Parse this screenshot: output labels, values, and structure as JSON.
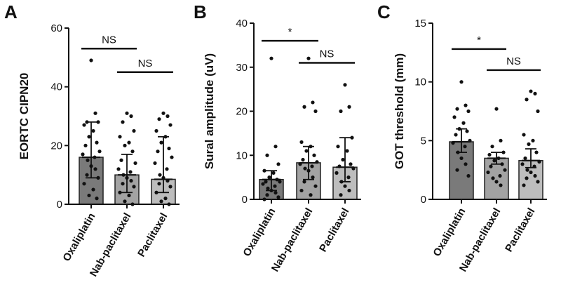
{
  "chart_data": [
    {
      "type": "bar",
      "panel": "A",
      "ylabel": "EORTC CIPN20",
      "ylim": [
        0,
        60
      ],
      "yticks": [
        0,
        20,
        40,
        60
      ],
      "categories": [
        "Oxaliplatin",
        "Nab-paclitaxel",
        "Paclitaxel"
      ],
      "bar_colors": [
        "#7a7a7a",
        "#a3a3a3",
        "#bdbdbd"
      ],
      "values": [
        16,
        10,
        8.5
      ],
      "error_low": [
        9,
        4,
        4
      ],
      "error_high": [
        28,
        17,
        23
      ],
      "points": [
        [
          49,
          31,
          28,
          28,
          27,
          25,
          23,
          21,
          20,
          18,
          17,
          16,
          15,
          13,
          12,
          10,
          9,
          7,
          5,
          3,
          2
        ],
        [
          31,
          30,
          28,
          25,
          23,
          21,
          20,
          18,
          15,
          14,
          12,
          11,
          10,
          9,
          8,
          7,
          6,
          4,
          3,
          1,
          0
        ],
        [
          31,
          30,
          29,
          27,
          25,
          23,
          21,
          19,
          18,
          16,
          14,
          12,
          10,
          9,
          8,
          7,
          6,
          4,
          2,
          1,
          0
        ]
      ],
      "significance": [
        {
          "from": 0,
          "to": 1,
          "label": "NS",
          "y": 53
        },
        {
          "from": 1,
          "to": 2,
          "label": "NS",
          "y": 45
        }
      ]
    },
    {
      "type": "bar",
      "panel": "B",
      "ylabel": "Sural amplitude  (uV)",
      "ylim": [
        0,
        40
      ],
      "yticks": [
        0,
        10,
        20,
        30,
        40
      ],
      "categories": [
        "Oxaliplatin",
        "Nab-paclitaxel",
        "Paclitaxel"
      ],
      "bar_colors": [
        "#7a7a7a",
        "#a3a3a3",
        "#bdbdbd"
      ],
      "values": [
        4.5,
        8.3,
        7.3
      ],
      "error_low": [
        2,
        4.5,
        4
      ],
      "error_high": [
        6.5,
        12,
        14
      ],
      "points": [
        [
          32,
          12,
          10,
          8,
          6.5,
          6,
          5,
          4.5,
          4,
          4,
          3.5,
          3,
          2.5,
          2,
          1.5,
          1,
          0.5,
          0
        ],
        [
          32,
          22,
          21,
          20,
          13,
          12,
          11,
          10,
          9,
          8.5,
          8,
          7.5,
          7,
          6.5,
          5,
          4,
          3,
          2,
          1
        ],
        [
          26,
          21,
          20,
          14,
          12,
          11,
          9,
          8,
          7.5,
          7,
          6,
          5,
          4,
          3,
          2,
          1
        ]
      ],
      "significance": [
        {
          "from": 0,
          "to": 1,
          "label": "*",
          "y": 36
        },
        {
          "from": 1,
          "to": 2,
          "label": "NS",
          "y": 31
        }
      ]
    },
    {
      "type": "bar",
      "panel": "C",
      "ylabel": "GOT threshold (mm)",
      "ylim": [
        0,
        15
      ],
      "yticks": [
        0,
        5,
        10,
        15
      ],
      "categories": [
        "Oxaliplatin",
        "Nab-paclitaxel",
        "Paclitaxel"
      ],
      "bar_colors": [
        "#7a7a7a",
        "#a3a3a3",
        "#bdbdbd"
      ],
      "values": [
        4.9,
        3.5,
        3.3
      ],
      "error_low": [
        4,
        3,
        2.7
      ],
      "error_high": [
        6,
        4,
        4.3
      ],
      "points": [
        [
          10,
          8,
          7.7,
          7.5,
          7,
          6.5,
          6,
          5.8,
          5.5,
          5,
          4.8,
          4.5,
          4,
          3.5,
          3,
          2.5,
          2
        ],
        [
          7.7,
          5,
          4.5,
          4,
          3.8,
          3.5,
          3.3,
          3,
          2.8,
          2.5,
          2.3,
          2,
          1.8,
          1.5,
          1.2
        ],
        [
          9.2,
          9,
          8.5,
          7.5,
          5.5,
          5,
          4.7,
          4,
          3.5,
          3.2,
          3,
          2.8,
          2.5,
          2.3,
          2,
          1.8,
          1.5,
          1.2
        ]
      ],
      "significance": [
        {
          "from": 0,
          "to": 1,
          "label": "*",
          "y": 12.8
        },
        {
          "from": 1,
          "to": 2,
          "label": "NS",
          "y": 11
        }
      ]
    }
  ]
}
